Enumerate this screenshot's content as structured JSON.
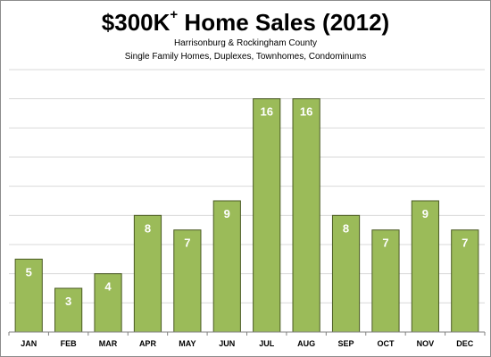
{
  "chart_data": {
    "type": "bar",
    "title": "$300K",
    "title_superscript": "+",
    "title_suffix": " Home Sales (2012)",
    "subtitle_lines": [
      "Harrisonburg & Rockingham County",
      "Single Family Homes, Duplexes, Townhomes, Condominums"
    ],
    "categories": [
      "JAN",
      "FEB",
      "MAR",
      "APR",
      "MAY",
      "JUN",
      "JUL",
      "AUG",
      "SEP",
      "OCT",
      "NOV",
      "DEC"
    ],
    "values": [
      5,
      3,
      4,
      8,
      7,
      9,
      16,
      16,
      8,
      7,
      9,
      7
    ],
    "ylim": [
      0,
      18
    ],
    "grid": true,
    "data_labels": true,
    "colors": {
      "bar_fill": "#9bbb59",
      "bar_stroke": "#4a5a24",
      "grid": "#d9d9d9",
      "axis": "#808080"
    }
  }
}
